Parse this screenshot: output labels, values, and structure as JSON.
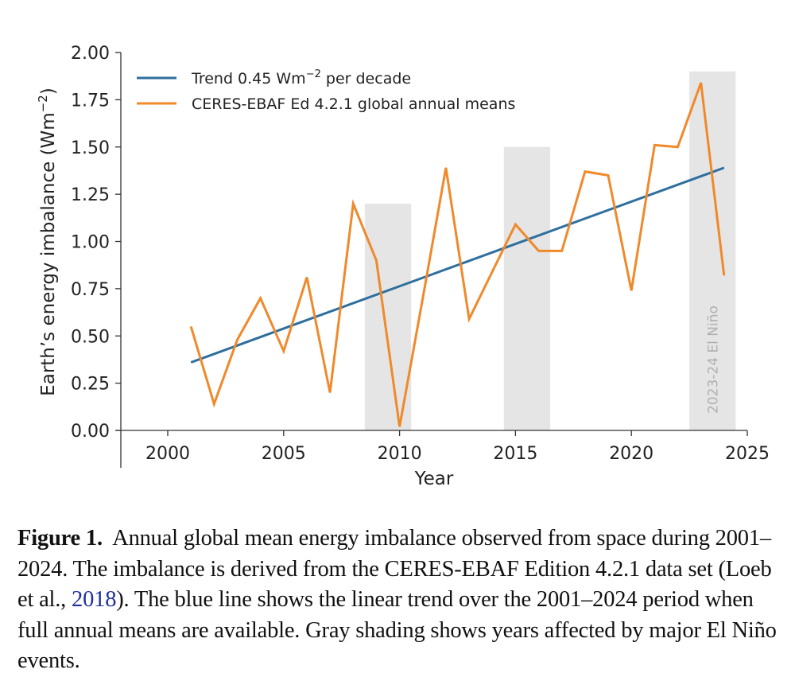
{
  "chart_data": {
    "type": "line",
    "title": "",
    "xlabel": "Year",
    "ylabel": "Earth's energy imbalance (Wm⁻²)",
    "ylabel_main": "Earth’s energy imbalance (Wm",
    "ylabel_sup": "−2",
    "ylabel_close": ")",
    "xlim": [
      1998.8,
      2025
    ],
    "ylim": [
      0,
      2
    ],
    "x_ticks": [
      2000,
      2005,
      2010,
      2015,
      2020,
      2025
    ],
    "x_tick_labels": [
      "2000",
      "2005",
      "2010",
      "2015",
      "2020",
      "2025"
    ],
    "y_ticks": [
      0,
      0.25,
      0.5,
      0.75,
      1.0,
      1.25,
      1.5,
      1.75,
      2.0
    ],
    "y_tick_labels": [
      "0.00",
      "0.25",
      "0.50",
      "0.75",
      "1.00",
      "1.25",
      "1.50",
      "1.75",
      "2.00"
    ],
    "grid": false,
    "legend_position": "top-left",
    "series": [
      {
        "name": "Trend 0.45 Wm⁻² per decade",
        "legend_main": "Trend 0.45 Wm",
        "legend_sup": "−2",
        "legend_tail": " per decade",
        "color": "#2e6f9e",
        "type": "trend",
        "x": [
          2001,
          2024
        ],
        "values": [
          0.36,
          1.39
        ]
      },
      {
        "name": "CERES-EBAF Ed 4.2.1 global annual means",
        "legend_main": "CERES-EBAF Ed 4.2.1 global annual means",
        "color": "#f0892a",
        "type": "line",
        "x": [
          2001,
          2002,
          2003,
          2004,
          2005,
          2006,
          2007,
          2008,
          2009,
          2010,
          2011,
          2012,
          2013,
          2014,
          2015,
          2016,
          2017,
          2018,
          2019,
          2020,
          2021,
          2022,
          2023,
          2024
        ],
        "values": [
          0.55,
          0.14,
          0.48,
          0.7,
          0.42,
          0.81,
          0.2,
          1.2,
          0.9,
          0.02,
          0.7,
          1.39,
          0.59,
          0.84,
          1.09,
          0.95,
          0.95,
          1.37,
          1.35,
          0.74,
          1.51,
          1.5,
          1.84,
          0.82
        ]
      }
    ],
    "shaded_regions": [
      {
        "x_start": 2008.5,
        "x_end": 2010.5,
        "y_top": 1.2,
        "label": ""
      },
      {
        "x_start": 2014.5,
        "x_end": 2016.5,
        "y_top": 1.5,
        "label": ""
      },
      {
        "x_start": 2022.5,
        "x_end": 2024.5,
        "y_top": 1.9,
        "label": "2023-24 El Niño"
      }
    ],
    "shade_color": "#e5e5e5"
  },
  "caption": {
    "label": "Figure 1.",
    "text_before_ref": "  Annual global mean energy imbalance observed from space during 2001–2024. The imbalance is derived from the CERES-EBAF Edition 4.2.1 data set (Loeb et al., ",
    "ref": "2018",
    "text_after_ref": "). The blue line shows the linear trend over the 2001–2024 period when full annual means are available. Gray shading shows years affected by major El Niño events."
  }
}
